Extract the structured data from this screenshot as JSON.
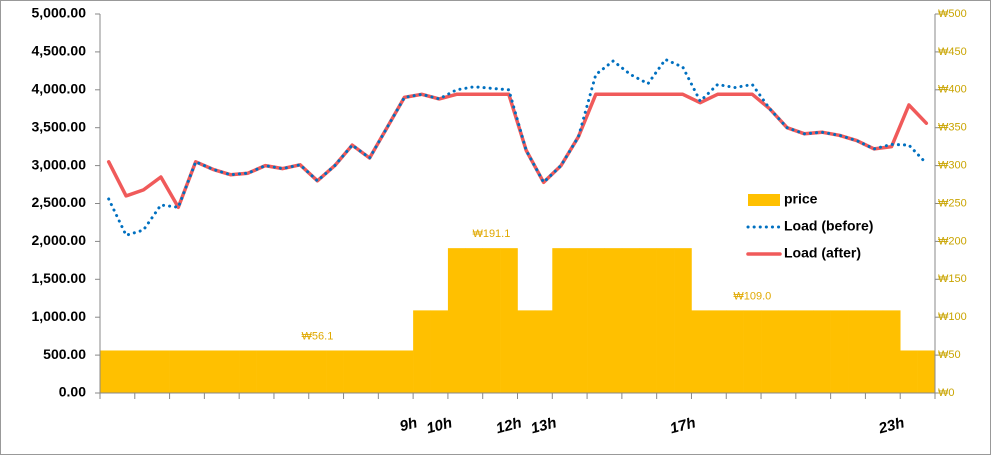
{
  "chart_data": {
    "type": "bar_line",
    "categories": [
      null,
      null,
      null,
      null,
      null,
      null,
      null,
      null,
      null,
      null,
      null,
      null,
      null,
      null,
      null,
      null,
      null,
      null,
      "9h",
      null,
      "10h",
      null,
      null,
      null,
      "12h",
      null,
      "13h",
      null,
      null,
      null,
      null,
      null,
      null,
      null,
      "17h",
      null,
      null,
      null,
      null,
      null,
      null,
      null,
      null,
      null,
      null,
      null,
      "23h",
      null
    ],
    "ylim": [
      0,
      5000
    ],
    "yticks": [
      {
        "value": 0,
        "label": "0.00"
      },
      {
        "value": 500,
        "label": "500.00"
      },
      {
        "value": 1000,
        "label": "1,000.00"
      },
      {
        "value": 1500,
        "label": "1,500.00"
      },
      {
        "value": 2000,
        "label": "2,000.00"
      },
      {
        "value": 2500,
        "label": "2,500.00"
      },
      {
        "value": 3000,
        "label": "3,000.00"
      },
      {
        "value": 3500,
        "label": "3,500.00"
      },
      {
        "value": 4000,
        "label": "4,000.00"
      },
      {
        "value": 4500,
        "label": "4,500.00"
      },
      {
        "value": 5000,
        "label": "5,000.00"
      }
    ],
    "y2lim": [
      0,
      500
    ],
    "y2ticks": [
      {
        "value": 0,
        "label": "₩0"
      },
      {
        "value": 50,
        "label": "₩50"
      },
      {
        "value": 100,
        "label": "₩100"
      },
      {
        "value": 150,
        "label": "₩150"
      },
      {
        "value": 200,
        "label": "₩200"
      },
      {
        "value": 250,
        "label": "₩250"
      },
      {
        "value": 300,
        "label": "₩300"
      },
      {
        "value": 350,
        "label": "₩350"
      },
      {
        "value": 400,
        "label": "₩400"
      },
      {
        "value": 450,
        "label": "₩450"
      },
      {
        "value": 500,
        "label": "₩500"
      }
    ],
    "legend": "right",
    "series": [
      {
        "name": "price",
        "type": "bar",
        "axis": "y2",
        "color": "#FFC000",
        "values": [
          56.1,
          56.1,
          56.1,
          56.1,
          56.1,
          56.1,
          56.1,
          56.1,
          56.1,
          56.1,
          56.1,
          56.1,
          56.1,
          56.1,
          56.1,
          56.1,
          56.1,
          56.1,
          109.0,
          109.0,
          191.1,
          191.1,
          191.1,
          191.1,
          109.0,
          109.0,
          191.1,
          191.1,
          191.1,
          191.1,
          191.1,
          191.1,
          191.1,
          191.1,
          109.0,
          109.0,
          109.0,
          109.0,
          109.0,
          109.0,
          109.0,
          109.0,
          109.0,
          109.0,
          109.0,
          109.0,
          56.1,
          56.1
        ],
        "value_labels": [
          null,
          null,
          null,
          null,
          null,
          null,
          null,
          null,
          null,
          null,
          null,
          null,
          "₩56.1",
          null,
          null,
          null,
          null,
          null,
          null,
          null,
          null,
          null,
          "₩191.1",
          null,
          null,
          null,
          null,
          null,
          null,
          null,
          null,
          null,
          null,
          null,
          null,
          null,
          null,
          "₩109.0",
          null,
          null,
          null,
          null,
          null,
          null,
          null,
          null,
          null,
          null
        ]
      },
      {
        "name": "Load (before)",
        "type": "line",
        "color": "#0070C0",
        "dash": "dotted",
        "values": [
          2560,
          2080,
          2150,
          2480,
          2450,
          3050,
          2950,
          2880,
          2900,
          3000,
          2960,
          3010,
          2800,
          3000,
          3270,
          3100,
          3500,
          3900,
          3940,
          3880,
          4000,
          4040,
          4020,
          4000,
          3200,
          2780,
          3000,
          3380,
          4200,
          4380,
          4200,
          4080,
          4400,
          4300,
          3850,
          4070,
          4030,
          4070,
          3750,
          3500,
          3420,
          3440,
          3400,
          3330,
          3220,
          3280,
          3270,
          3030
        ]
      },
      {
        "name": "Load (after)",
        "type": "line",
        "color": "#F05A5A",
        "values": [
          3050,
          2600,
          2680,
          2850,
          2450,
          3050,
          2950,
          2880,
          2900,
          3000,
          2960,
          3010,
          2800,
          3000,
          3270,
          3100,
          3500,
          3900,
          3940,
          3880,
          3940,
          3940,
          3940,
          3940,
          3200,
          2780,
          3000,
          3380,
          3940,
          3940,
          3940,
          3940,
          3940,
          3940,
          3830,
          3940,
          3940,
          3940,
          3750,
          3500,
          3420,
          3440,
          3400,
          3330,
          3220,
          3250,
          3800,
          3560
        ]
      }
    ]
  }
}
